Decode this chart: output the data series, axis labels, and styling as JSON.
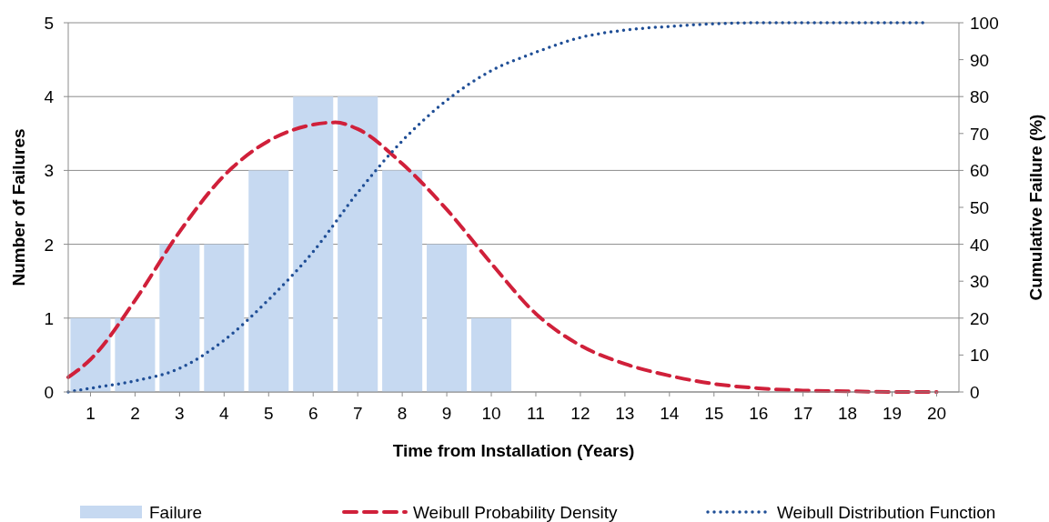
{
  "chart_data": {
    "type": "bar",
    "xlabel": "Time from Installation (Years)",
    "ylabel": "Number of Failures",
    "y2label": "Cumulative Failure (%)",
    "xlim": [
      0.5,
      20.5
    ],
    "xticks": [
      1,
      2,
      3,
      4,
      5,
      6,
      7,
      8,
      9,
      10,
      11,
      12,
      13,
      14,
      15,
      16,
      17,
      18,
      19,
      20
    ],
    "ylim": [
      0,
      5
    ],
    "yticks": [
      0,
      1,
      2,
      3,
      4,
      5
    ],
    "y2lim": [
      0,
      100
    ],
    "y2ticks": [
      0,
      10,
      20,
      30,
      40,
      50,
      60,
      70,
      80,
      90,
      100
    ],
    "grid": "y",
    "legend": "bottom",
    "series": [
      {
        "name": "Failure",
        "color": "#c6d9f1",
        "x": [
          1,
          2,
          3,
          4,
          5,
          6,
          7,
          8,
          9,
          10
        ],
        "values": [
          1,
          1,
          2,
          2,
          3,
          4,
          4,
          3,
          2,
          1
        ]
      },
      {
        "name": "Weibull Probability Density",
        "type": "line",
        "line_style": "dashed",
        "color": "#d0203a",
        "x": [
          0.5,
          1,
          2,
          3,
          4,
          5,
          6,
          6.5,
          7,
          8,
          9,
          10,
          11,
          12,
          13,
          14,
          15,
          16,
          17,
          18,
          19,
          20
        ],
        "values": [
          0.2,
          0.44,
          1.24,
          2.17,
          2.93,
          3.4,
          3.62,
          3.65,
          3.56,
          3.09,
          2.47,
          1.74,
          1.06,
          0.63,
          0.38,
          0.22,
          0.11,
          0.05,
          0.02,
          0.01,
          0,
          0
        ]
      },
      {
        "name": "Weibull Distribution Function",
        "type": "line",
        "line_style": "dotted",
        "axis": "y2",
        "color": "#1f4e96",
        "x": [
          0.5,
          1,
          2,
          3,
          4,
          5,
          6,
          7,
          8,
          9,
          10,
          11,
          12,
          13,
          14,
          15,
          16,
          17,
          18,
          19,
          19.8
        ],
        "values": [
          0,
          1,
          3,
          6.4,
          14,
          25,
          38,
          54,
          68,
          79,
          87,
          92,
          96,
          98,
          99,
          99.7,
          100,
          100,
          100,
          100,
          100
        ]
      }
    ]
  }
}
